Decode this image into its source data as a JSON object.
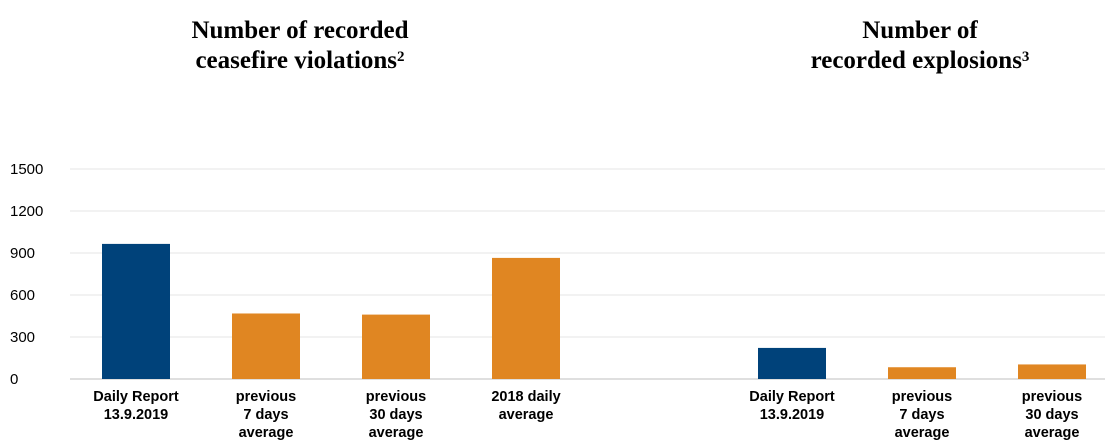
{
  "titles": {
    "left": {
      "text": "Number of recorded ceasefire violations",
      "line1": "Number of recorded",
      "line2": "ceasefire violations",
      "footnote": "2"
    },
    "right": {
      "text": "Number of recorded explosions",
      "line1": "Number of",
      "line2": "recorded explosions",
      "footnote": "3"
    }
  },
  "colors": {
    "current": "#00427a",
    "average": "#e08622",
    "gridline": "#e6e6e6",
    "baseline": "#bfbfbf"
  },
  "chart_data": {
    "type": "bar",
    "ylim": [
      0,
      1500
    ],
    "yticks": [
      0,
      300,
      600,
      900,
      1200,
      1500
    ],
    "grid": true,
    "groups": [
      {
        "title": "Number of recorded ceasefire violations",
        "categories": [
          [
            "Daily Report",
            "13.9.2019"
          ],
          [
            "previous",
            "7 days",
            "average"
          ],
          [
            "previous",
            "30 days",
            "average"
          ],
          [
            "2018 daily",
            "average"
          ]
        ],
        "values": [
          965,
          468,
          460,
          865
        ],
        "colors": [
          "#00427a",
          "#e08622",
          "#e08622",
          "#e08622"
        ]
      },
      {
        "title": "Number of recorded explosions",
        "categories": [
          [
            "Daily Report",
            "13.9.2019"
          ],
          [
            "previous",
            "7 days",
            "average"
          ],
          [
            "previous",
            "30 days",
            "average"
          ]
        ],
        "values": [
          222,
          84,
          104
        ],
        "colors": [
          "#00427a",
          "#e08622",
          "#e08622"
        ]
      }
    ]
  }
}
